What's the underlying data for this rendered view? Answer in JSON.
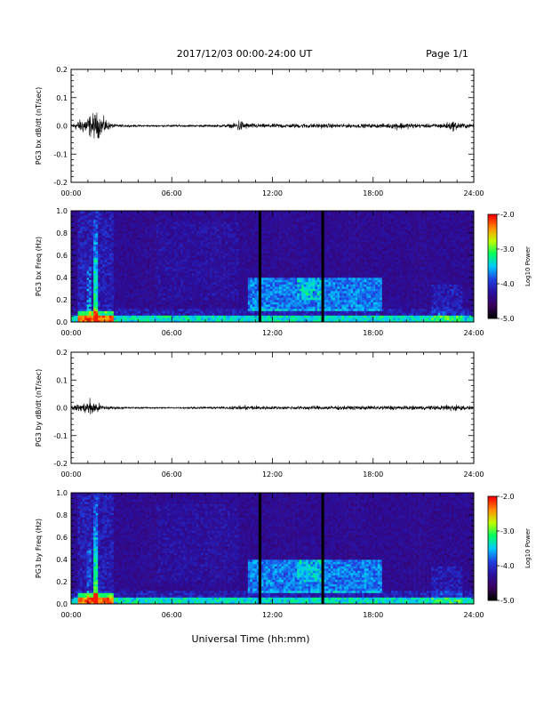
{
  "header": {
    "date_range": "2017/12/03  00:00-24:00 UT",
    "page": "Page 1/1"
  },
  "footer": {
    "xlabel": "Universal Time (hh:mm)"
  },
  "colors": {
    "trace": "#000000",
    "colormap": [
      "#000000",
      "#3b0060",
      "#2a10a0",
      "#2040e0",
      "#00c8ff",
      "#00ff60",
      "#c0ff00",
      "#ff9000",
      "#ff0000"
    ]
  },
  "chart_data": [
    {
      "type": "line",
      "title": "",
      "xlabel": "",
      "ylabel": "PG3 bx dB/dt (nT/sec)",
      "xlim": [
        0,
        24
      ],
      "ylim": [
        -0.2,
        0.2
      ],
      "x_ticks": [
        "00:00",
        "06:00",
        "12:00",
        "18:00",
        "24:00"
      ],
      "y_ticks": [
        "-0.2",
        "-0.1",
        "0.0",
        "0.1",
        "0.2"
      ],
      "series": [
        {
          "x": [
            0.0,
            0.25,
            0.5,
            0.75,
            1.0,
            1.25,
            1.5,
            1.75,
            2.0,
            2.25,
            2.5,
            3.0,
            4.0,
            5.0,
            6.0,
            7.0,
            8.0,
            9.0,
            9.5,
            9.8,
            10.0,
            10.2,
            10.5,
            11.0,
            11.5,
            12.0,
            12.5,
            13.0,
            14.0,
            15.0,
            16.0,
            17.0,
            18.0,
            19.0,
            19.5,
            20.0,
            21.0,
            22.0,
            22.5,
            22.8,
            23.0,
            23.5,
            24.0
          ],
          "amplitude": [
            0.01,
            0.02,
            0.03,
            0.04,
            0.05,
            0.06,
            0.07,
            0.05,
            0.04,
            0.02,
            0.01,
            0.006,
            0.005,
            0.004,
            0.005,
            0.005,
            0.005,
            0.007,
            0.01,
            0.015,
            0.035,
            0.025,
            0.015,
            0.012,
            0.01,
            0.01,
            0.012,
            0.01,
            0.012,
            0.012,
            0.01,
            0.01,
            0.01,
            0.012,
            0.02,
            0.015,
            0.01,
            0.012,
            0.02,
            0.025,
            0.02,
            0.012,
            0.008
          ]
        }
      ]
    },
    {
      "type": "heatmap",
      "title": "",
      "xlabel": "",
      "ylabel": "PG3 bx Freq (Hz)",
      "xlim": [
        0,
        24
      ],
      "ylim": [
        0.0,
        1.0
      ],
      "x_ticks": [
        "00:00",
        "06:00",
        "12:00",
        "18:00",
        "24:00"
      ],
      "y_ticks": [
        "0.0",
        "0.2",
        "0.4",
        "0.6",
        "0.8",
        "1.0"
      ],
      "colorbar": {
        "label": "Log10 Power",
        "range": [
          -5.0,
          -2.0
        ],
        "ticks": [
          "-2.0",
          "-3.0",
          "-4.0",
          "-5.0"
        ]
      },
      "gaps_hours": [
        11.25,
        15.0
      ]
    },
    {
      "type": "line",
      "title": "",
      "xlabel": "",
      "ylabel": "PG3 by dB/dt (nT/sec)",
      "xlim": [
        0,
        24
      ],
      "ylim": [
        -0.2,
        0.2
      ],
      "x_ticks": [
        "00:00",
        "06:00",
        "12:00",
        "18:00",
        "24:00"
      ],
      "y_ticks": [
        "-0.2",
        "-0.1",
        "0.0",
        "0.1",
        "0.2"
      ],
      "series": [
        {
          "x": [
            0.0,
            0.25,
            0.5,
            0.75,
            1.0,
            1.25,
            1.5,
            1.75,
            2.0,
            2.5,
            3.0,
            4.0,
            5.0,
            6.0,
            7.0,
            8.0,
            9.0,
            10.0,
            10.5,
            11.0,
            11.5,
            12.0,
            12.5,
            13.0,
            14.0,
            15.0,
            16.0,
            17.0,
            18.0,
            19.0,
            20.0,
            21.0,
            22.0,
            22.5,
            23.0,
            23.5,
            24.0
          ],
          "amplitude": [
            0.01,
            0.015,
            0.02,
            0.025,
            0.035,
            0.045,
            0.03,
            0.02,
            0.012,
            0.008,
            0.006,
            0.004,
            0.004,
            0.004,
            0.005,
            0.005,
            0.006,
            0.01,
            0.012,
            0.012,
            0.01,
            0.008,
            0.008,
            0.008,
            0.01,
            0.01,
            0.01,
            0.01,
            0.01,
            0.012,
            0.01,
            0.01,
            0.012,
            0.018,
            0.016,
            0.01,
            0.008
          ]
        }
      ]
    },
    {
      "type": "heatmap",
      "title": "",
      "xlabel": "",
      "ylabel": "PG3 by Freq (Hz)",
      "xlim": [
        0,
        24
      ],
      "ylim": [
        0.0,
        1.0
      ],
      "x_ticks": [
        "00:00",
        "06:00",
        "12:00",
        "18:00",
        "24:00"
      ],
      "y_ticks": [
        "0.0",
        "0.2",
        "0.4",
        "0.6",
        "0.8",
        "1.0"
      ],
      "colorbar": {
        "label": "Log10 Power",
        "range": [
          -5.0,
          -2.0
        ],
        "ticks": [
          "-2.0",
          "-3.0",
          "-4.0",
          "-5.0"
        ]
      },
      "gaps_hours": [
        11.25,
        15.0
      ]
    }
  ]
}
